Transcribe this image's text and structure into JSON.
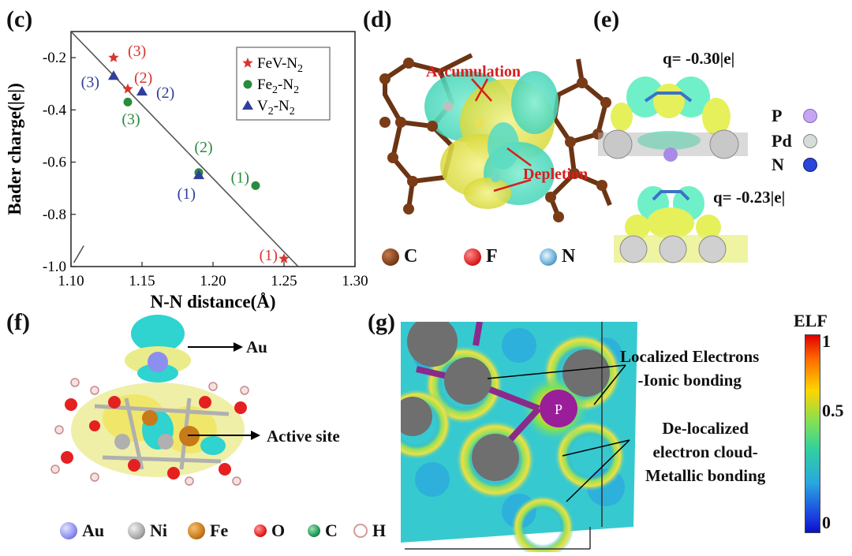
{
  "panels": {
    "c": {
      "label": "(c)",
      "ylabel": "Bader charge(|e|)",
      "xlabel": "N-N distance(Å)"
    },
    "d": {
      "label": "(d)",
      "annotations": [
        "Accumulation",
        "Depletion"
      ],
      "legend": [
        {
          "symbol": "C",
          "color": "#7a3b16"
        },
        {
          "symbol": "F",
          "color": "#d81e1e"
        },
        {
          "symbol": "N",
          "color": "#6fb3d9"
        }
      ]
    },
    "e": {
      "label": "(e)",
      "q_top": "q= -0.30|e|",
      "q_bottom": "q= -0.23|e|",
      "legend": [
        {
          "symbol": "P",
          "color": "#c6a6f2"
        },
        {
          "symbol": "Pd",
          "color": "#d6dcd8"
        },
        {
          "symbol": "N",
          "color": "#2a45d8"
        }
      ]
    },
    "f": {
      "label": "(f)",
      "pointer_au": "Au",
      "pointer_active": "Active site",
      "legend": [
        {
          "symbol": "Au",
          "color": "#8c8ef0"
        },
        {
          "symbol": "Ni",
          "color": "#a9a9a9"
        },
        {
          "symbol": "Fe",
          "color": "#c77a1a"
        },
        {
          "symbol": "O",
          "color": "#e52020"
        },
        {
          "symbol": "C",
          "color": "#1f9a55"
        },
        {
          "symbol": "H",
          "color": "#f1d6d6"
        }
      ]
    },
    "g": {
      "label": "(g)",
      "atom_label": "P",
      "annotation_1": "Localized Electrons\n-Ionic bonding",
      "annotation_2": "De-localized\nelectron cloud-\nMetallic bonding",
      "colorbar_title": "ELF",
      "colorbar_ticks": [
        "1",
        "0.5",
        "0"
      ]
    }
  },
  "chart_data": {
    "type": "scatter",
    "xlabel": "N-N distance(Å)",
    "ylabel": "Bader charge(|e|)",
    "xlim": [
      1.1,
      1.3
    ],
    "ylim": [
      -1.0,
      -0.1
    ],
    "xticks": [
      "1.10",
      "1.15",
      "1.20",
      "1.25",
      "1.30"
    ],
    "yticks": [
      "-0.2",
      "-0.4",
      "-0.6",
      "-0.8",
      "-1.0"
    ],
    "legend_position": "top-right",
    "series": [
      {
        "name": "FeV-N2",
        "marker": "star",
        "color": "#d9352f",
        "points": [
          [
            1.13,
            -0.2,
            "(3)"
          ],
          [
            1.14,
            -0.32,
            "(2)"
          ],
          [
            1.25,
            -0.97,
            "(1)"
          ]
        ]
      },
      {
        "name": "Fe2-N2",
        "marker": "circle",
        "color": "#2a8a3e",
        "points": [
          [
            1.14,
            -0.37,
            "(3)"
          ],
          [
            1.19,
            -0.64,
            "(2)"
          ],
          [
            1.23,
            -0.69,
            "(1)"
          ]
        ]
      },
      {
        "name": "V2-N2",
        "marker": "triangle",
        "color": "#2f3f9a",
        "points": [
          [
            1.13,
            -0.27,
            "(3)"
          ],
          [
            1.15,
            -0.33,
            "(2)"
          ],
          [
            1.19,
            -0.65,
            "(1)"
          ]
        ]
      }
    ],
    "fit_line": {
      "x": [
        1.1,
        1.26
      ],
      "y": [
        -0.1,
        -1.0
      ]
    }
  }
}
